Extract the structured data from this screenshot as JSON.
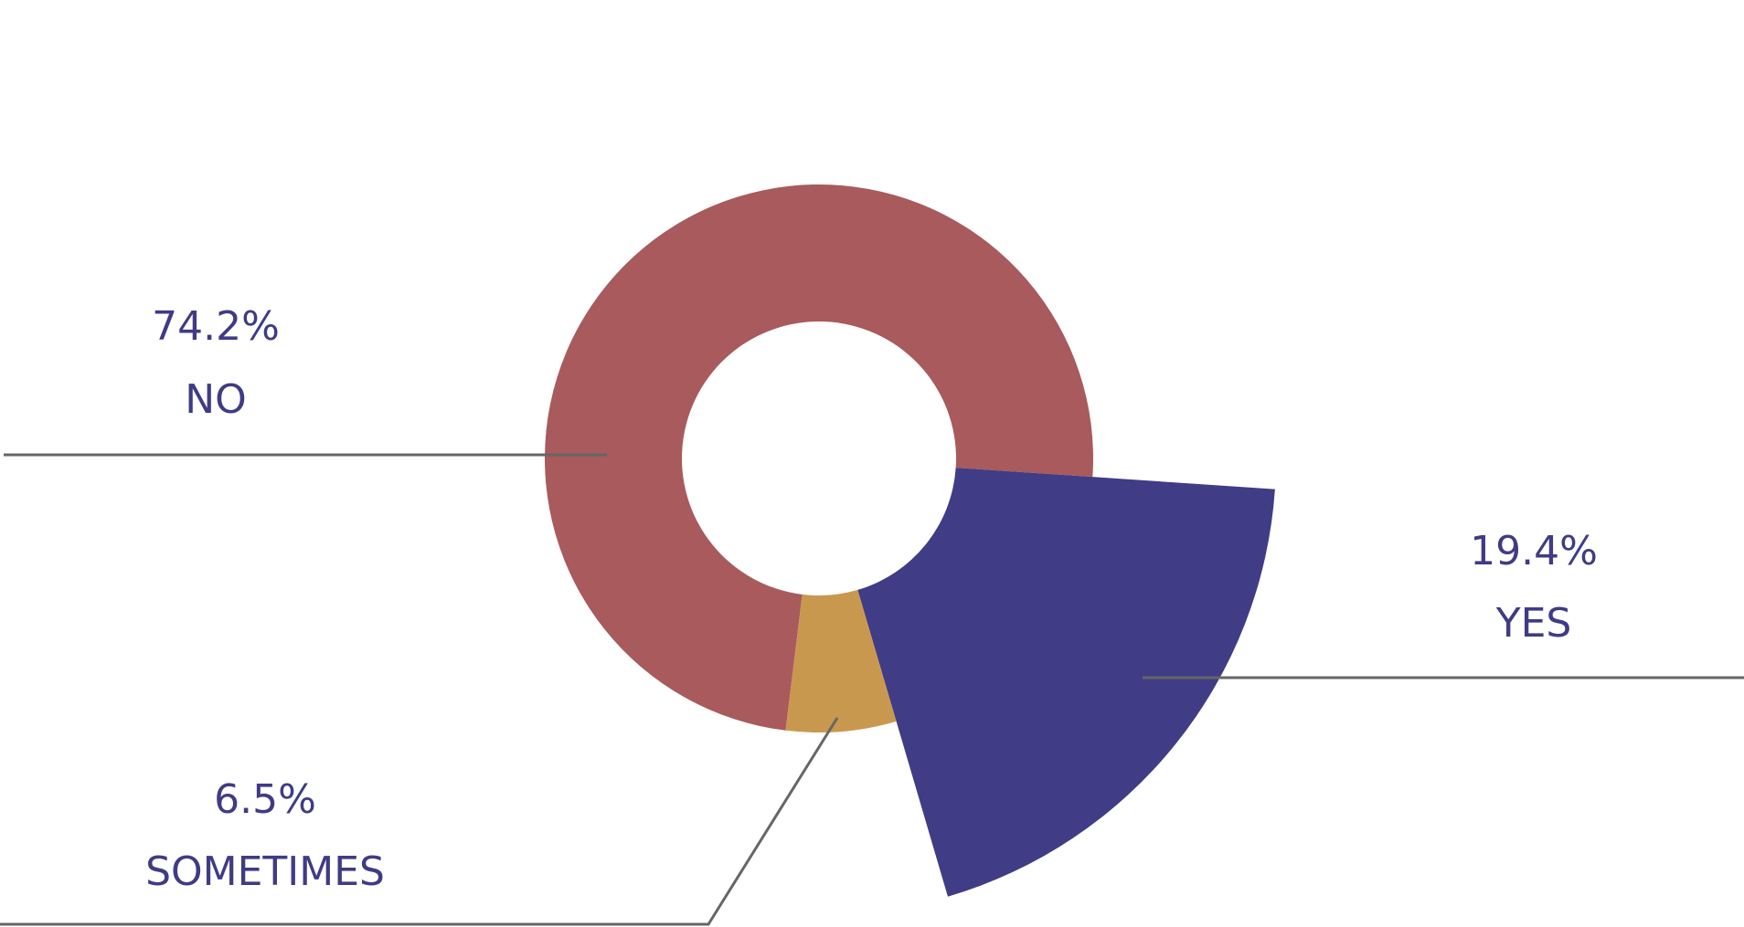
{
  "chart_data": {
    "type": "pie",
    "donut": true,
    "legend": "none",
    "slices": [
      {
        "label": "NO",
        "value": 74.2,
        "value_label": "74.2%",
        "color": "#a85a5c"
      },
      {
        "label": "YES",
        "value": 19.4,
        "value_label": "19.4%",
        "color": "#403c86",
        "exploded": true
      },
      {
        "label": "SOMETIMES",
        "value": 6.5,
        "value_label": "6.5%",
        "color": "#c9984f"
      }
    ],
    "label_color": "#3f3b85",
    "leader_color": "#666666"
  }
}
